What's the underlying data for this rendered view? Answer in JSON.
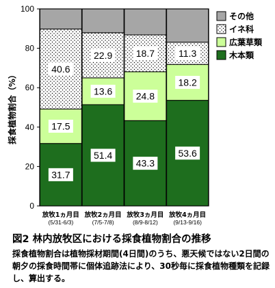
{
  "chart_data": {
    "type": "bar",
    "stacked": true,
    "ylabel": "採食植物割合（%）",
    "ylim": [
      0,
      100
    ],
    "yticks": [
      0,
      20,
      40,
      60,
      80,
      100
    ],
    "categories": [
      {
        "label": "放牧1ヵ月目",
        "sub": "(5/31-6/3)"
      },
      {
        "label": "放牧2ヵ月目",
        "sub": "(7/5-7/8)"
      },
      {
        "label": "放牧3ヵ月目",
        "sub": "(8/9-8/12)"
      },
      {
        "label": "放牧4ヵ月目",
        "sub": "(9/13-9/16)"
      }
    ],
    "series": [
      {
        "name": "木本類",
        "color": "#1e6e1e",
        "values": [
          31.7,
          51.4,
          43.3,
          53.6
        ],
        "labels": [
          "31.7",
          "51.4",
          "43.3",
          "53.6"
        ],
        "pattern": "solid"
      },
      {
        "name": "広葉草類",
        "color": "#ccff99",
        "values": [
          17.5,
          13.6,
          24.8,
          18.2
        ],
        "labels": [
          "17.5",
          "13.6",
          "24.8",
          "18.2"
        ],
        "pattern": "solid"
      },
      {
        "name": "イネ科",
        "color": "#ffffff",
        "values": [
          40.6,
          22.9,
          18.7,
          11.3
        ],
        "labels": [
          "40.6",
          "22.9",
          "18.7",
          "11.3"
        ],
        "pattern": "dots"
      },
      {
        "name": "その他",
        "color": "#a6a6a6",
        "values": [
          10.2,
          12.1,
          13.2,
          16.9
        ],
        "labels": [
          "",
          "",
          "",
          ""
        ],
        "pattern": "solid"
      }
    ],
    "legend_position": "right"
  },
  "caption": {
    "title": "図2  林内放牧区における採食植物割合の推移",
    "body": "採食植物割合は植物採材期間(4日間)のうち、悪天候ではない2日間の朝夕の採食時間帯に個体追跡法により、30秒毎に採食植物種類を記録し、算出する。"
  }
}
